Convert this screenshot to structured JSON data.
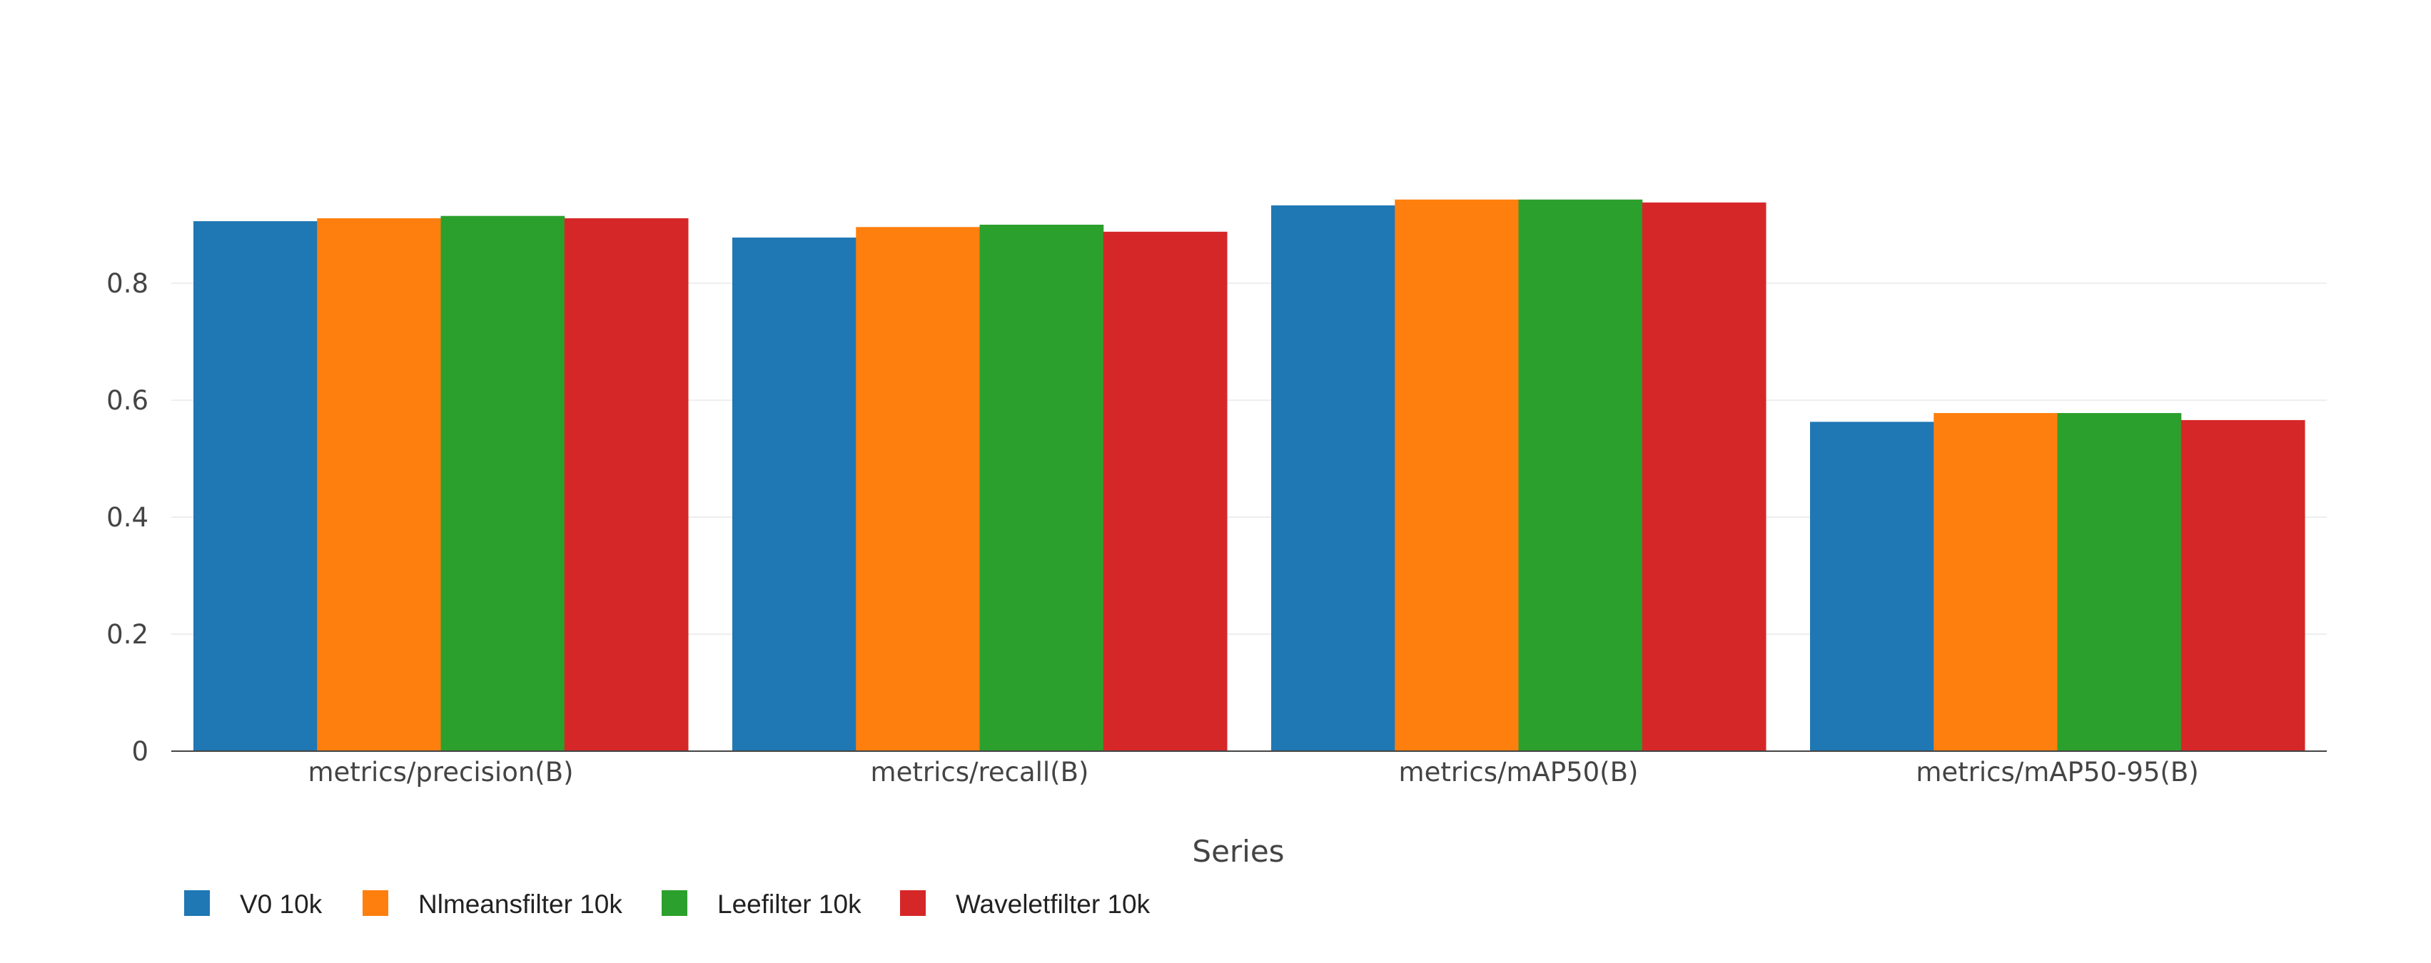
{
  "chart_data": {
    "type": "bar",
    "categories": [
      "metrics/precision(B)",
      "metrics/recall(B)",
      "metrics/mAP50(B)",
      "metrics/mAP50-95(B)"
    ],
    "series": [
      {
        "name": "V0 10k",
        "color": "#1f77b4",
        "values": [
          0.906,
          0.878,
          0.933,
          0.563
        ]
      },
      {
        "name": "Nlmeansfilter 10k",
        "color": "#ff7f0e",
        "values": [
          0.911,
          0.896,
          0.943,
          0.578
        ]
      },
      {
        "name": "Leefilter 10k",
        "color": "#2ca02c",
        "values": [
          0.915,
          0.9,
          0.943,
          0.578
        ]
      },
      {
        "name": "Waveletfilter 10k",
        "color": "#d62728",
        "values": [
          0.911,
          0.888,
          0.938,
          0.566
        ]
      }
    ],
    "yticks": [
      0,
      0.2,
      0.4,
      0.6,
      0.8
    ],
    "ytick_labels": [
      "0",
      "0.2",
      "0.4",
      "0.6",
      "0.8"
    ],
    "ylim": [
      0,
      1.0
    ],
    "title": "",
    "xlabel": "",
    "ylabel": "",
    "legend_title": "Series",
    "legend_position": "bottom-left",
    "grid": true
  }
}
